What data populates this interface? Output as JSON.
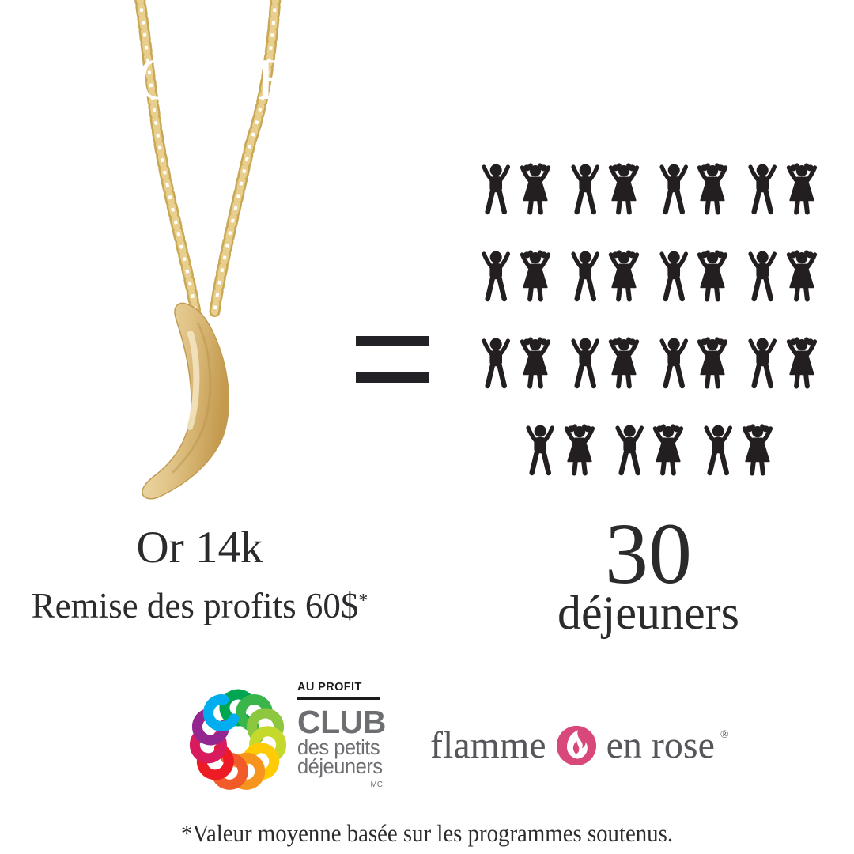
{
  "header": {
    "title": "NOTRE CONTRIBUTION",
    "bg_color": "#d3457a",
    "text_color": "#ffffff"
  },
  "product": {
    "material": "Or 14k",
    "profit_line": "Remise des profits 60$",
    "asterisk": "*"
  },
  "equation": {
    "symbol": "="
  },
  "pictograph": {
    "rows": [
      8,
      8,
      8,
      6
    ],
    "total_icons": 30,
    "icon_sequence": [
      "boy",
      "girl"
    ],
    "icon_color": "#231f20"
  },
  "result": {
    "count": "30",
    "label": "déjeuners"
  },
  "logos": {
    "club": {
      "eyebrow": "AU PROFIT",
      "line1": "CLUB",
      "line2": "des petits",
      "line3": "déjeuners",
      "trademark": "MC",
      "text_color": "#6d6e71",
      "spiral_colors": [
        "#00a551",
        "#39b54a",
        "#8dc63f",
        "#c5d92d",
        "#ffcb05",
        "#f7941e",
        "#f15a29",
        "#ed1c24",
        "#d91a5d",
        "#93278f",
        "#00aeef"
      ]
    },
    "flamme": {
      "word1": "flamme",
      "word2": "en rose",
      "registered": "®",
      "icon_color": "#d9487b"
    }
  },
  "footnote": {
    "text": "*Valeur moyenne basée sur les programmes soutenus."
  },
  "palette": {
    "banner_pink": "#d3457a",
    "gold": "#d5b264",
    "text_dark": "#2b2a2d"
  }
}
